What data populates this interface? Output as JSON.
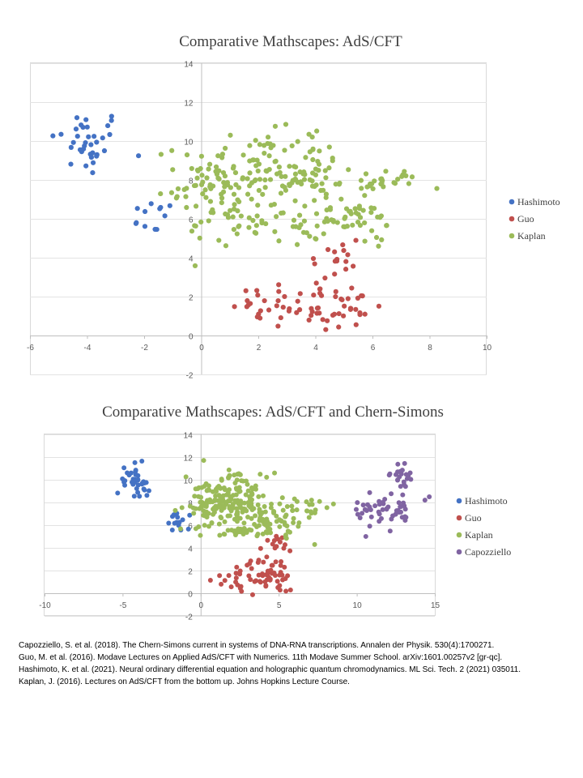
{
  "chart_data": [
    {
      "type": "scatter",
      "title": "Comparative Mathscapes: AdS/CFT",
      "xlim": [
        -6,
        10
      ],
      "ylim": [
        -2,
        14
      ],
      "x_ticks": [
        "-6",
        "-4",
        "-2",
        "0",
        "2",
        "4",
        "6",
        "8",
        "10"
      ],
      "y_ticks": [
        "-2",
        "0",
        "2",
        "4",
        "6",
        "8",
        "10",
        "12",
        "14"
      ],
      "grid": "horizontal",
      "legend": "right",
      "series": [
        {
          "name": "Hashimoto",
          "color": "#4472C4",
          "clusters": [
            {
              "cx": -4.0,
              "cy": 9.9,
              "sx": 0.65,
              "sy": 0.9,
              "n": 36
            },
            {
              "cx": -1.7,
              "cy": 6.1,
              "sx": 0.4,
              "sy": 0.4,
              "n": 12
            }
          ]
        },
        {
          "name": "Guo",
          "color": "#C0504D",
          "clusters": [
            {
              "cx": 2.5,
              "cy": 1.5,
              "sx": 0.7,
              "sy": 0.6,
              "n": 22
            },
            {
              "cx": 4.0,
              "cy": 1.7,
              "sx": 0.5,
              "sy": 0.8,
              "n": 28
            },
            {
              "cx": 5.3,
              "cy": 1.4,
              "sx": 0.4,
              "sy": 0.7,
              "n": 18
            },
            {
              "cx": 4.7,
              "cy": 3.8,
              "sx": 0.5,
              "sy": 0.8,
              "n": 16
            }
          ]
        },
        {
          "name": "Kaplan",
          "color": "#9BBB59",
          "clusters": [
            {
              "cx": 1.8,
              "cy": 8.2,
              "sx": 1.3,
              "sy": 1.1,
              "n": 120
            },
            {
              "cx": 0.2,
              "cy": 7.5,
              "sx": 0.6,
              "sy": 1.2,
              "n": 30
            },
            {
              "cx": 3.9,
              "cy": 8.5,
              "sx": 0.6,
              "sy": 1.0,
              "n": 40
            },
            {
              "cx": 2.2,
              "cy": 5.6,
              "sx": 1.2,
              "sy": 0.5,
              "n": 40
            },
            {
              "cx": 5.0,
              "cy": 6.0,
              "sx": 0.8,
              "sy": 0.4,
              "n": 40
            },
            {
              "cx": 6.3,
              "cy": 7.9,
              "sx": 0.7,
              "sy": 0.3,
              "n": 30
            },
            {
              "cx": 6.4,
              "cy": 5.6,
              "sx": 0.2,
              "sy": 0.4,
              "n": 6
            }
          ]
        }
      ]
    },
    {
      "type": "scatter",
      "title": "Comparative Mathscapes: AdS/CFT and Chern-Simons",
      "xlim": [
        -10,
        15
      ],
      "ylim": [
        -2,
        14
      ],
      "x_ticks": [
        "-10",
        "-5",
        "0",
        "5",
        "10",
        "15"
      ],
      "y_ticks": [
        "-2",
        "0",
        "2",
        "4",
        "6",
        "8",
        "10",
        "12",
        "14"
      ],
      "grid": "horizontal",
      "legend": "right",
      "series": [
        {
          "name": "Hashimoto",
          "color": "#4472C4",
          "clusters": [
            {
              "cx": -4.1,
              "cy": 9.9,
              "sx": 0.6,
              "sy": 0.9,
              "n": 36
            },
            {
              "cx": -1.8,
              "cy": 6.1,
              "sx": 0.5,
              "sy": 0.4,
              "n": 14
            }
          ]
        },
        {
          "name": "Guo",
          "color": "#C0504D",
          "clusters": [
            {
              "cx": 2.2,
              "cy": 1.4,
              "sx": 0.7,
              "sy": 0.6,
              "n": 20
            },
            {
              "cx": 4.0,
              "cy": 1.5,
              "sx": 0.6,
              "sy": 0.8,
              "n": 28
            },
            {
              "cx": 5.2,
              "cy": 1.4,
              "sx": 0.4,
              "sy": 0.7,
              "n": 18
            },
            {
              "cx": 4.8,
              "cy": 4.2,
              "sx": 0.5,
              "sy": 0.7,
              "n": 14
            }
          ]
        },
        {
          "name": "Kaplan",
          "color": "#9BBB59",
          "clusters": [
            {
              "cx": 2.0,
              "cy": 8.3,
              "sx": 1.4,
              "sy": 1.1,
              "n": 150
            },
            {
              "cx": 0.3,
              "cy": 7.4,
              "sx": 0.7,
              "sy": 1.1,
              "n": 40
            },
            {
              "cx": 4.6,
              "cy": 6.3,
              "sx": 1.0,
              "sy": 0.6,
              "n": 50
            },
            {
              "cx": 6.4,
              "cy": 7.6,
              "sx": 0.8,
              "sy": 0.4,
              "n": 24
            },
            {
              "cx": 3.3,
              "cy": 5.4,
              "sx": 1.2,
              "sy": 0.3,
              "n": 24
            }
          ]
        },
        {
          "name": "Capozziello",
          "color": "#8064A2",
          "clusters": [
            {
              "cx": 12.8,
              "cy": 10.2,
              "sx": 0.5,
              "sy": 0.5,
              "n": 22
            },
            {
              "cx": 12.0,
              "cy": 7.3,
              "sx": 1.0,
              "sy": 0.8,
              "n": 50
            }
          ]
        }
      ]
    }
  ],
  "references": [
    "Capozziello, S. et al. (2018). The Chern-Simons current in systems of DNA-RNA transcriptions. Annalen der Physik. 530(4):1700271.",
    "Guo, M. et al. (2016). Modave Lectures on Applied AdS/CFT with Numerics. 11th Modave Summer School. arXiv:1601.00257v2 [gr-qc].",
    "Hashimoto, K. et al. (2021). Neural ordinary differential equation and holographic quantum chromodynamics. ML Sci. Tech. 2 (2021) 035011.",
    "Kaplan, J. (2016). Lectures on AdS/CFT from the bottom up. Johns Hopkins Lecture Course."
  ]
}
